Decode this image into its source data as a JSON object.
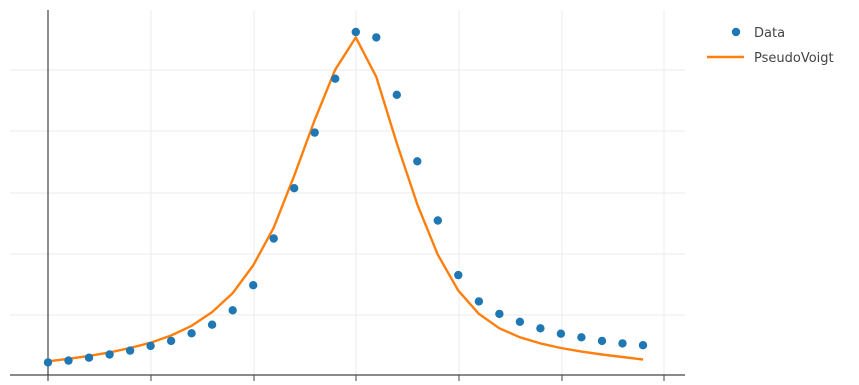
{
  "chart_data": {
    "type": "scatter",
    "title": "",
    "xlabel": "",
    "ylabel": "",
    "xlim": [
      0,
      30
    ],
    "ylim": [
      0,
      100
    ],
    "grid": true,
    "legend": {
      "position": "top-right",
      "show": true
    },
    "series": [
      {
        "name": "Data",
        "mode": "markers",
        "color": "#1f77b4",
        "x": [
          0,
          1,
          2,
          3,
          4,
          5,
          6,
          7,
          8,
          9,
          10,
          11,
          12,
          13,
          14,
          15,
          16,
          17,
          18,
          19,
          20,
          21,
          22,
          23,
          24,
          25,
          26,
          27,
          28,
          29
        ],
        "y": [
          1.0,
          1.5,
          2.3,
          3.2,
          4.3,
          5.6,
          7.0,
          9.1,
          11.5,
          15.5,
          22.5,
          35.5,
          49.5,
          65.0,
          80.0,
          93.0,
          91.5,
          75.5,
          57.0,
          40.5,
          25.3,
          18.0,
          14.5,
          12.3,
          10.5,
          9.0,
          8.0,
          7.0,
          6.3,
          5.8
        ]
      },
      {
        "name": "PseudoVoigt",
        "mode": "lines",
        "color": "#ff7f0e",
        "x": [
          0,
          1,
          2,
          3,
          4,
          5,
          6,
          7,
          8,
          9,
          10,
          11,
          12,
          13,
          14,
          15,
          16,
          17,
          18,
          19,
          20,
          21,
          22,
          23,
          24,
          25,
          26,
          27,
          28,
          29
        ],
        "y": [
          1.3,
          2.0,
          2.8,
          3.8,
          5.0,
          6.5,
          8.5,
          11.2,
          15.0,
          20.3,
          28.0,
          38.5,
          53.0,
          68.5,
          82.5,
          91.5,
          80.5,
          62.0,
          45.0,
          31.0,
          21.0,
          14.5,
          10.5,
          8.0,
          6.3,
          5.0,
          4.0,
          3.2,
          2.5,
          1.8
        ]
      }
    ]
  }
}
